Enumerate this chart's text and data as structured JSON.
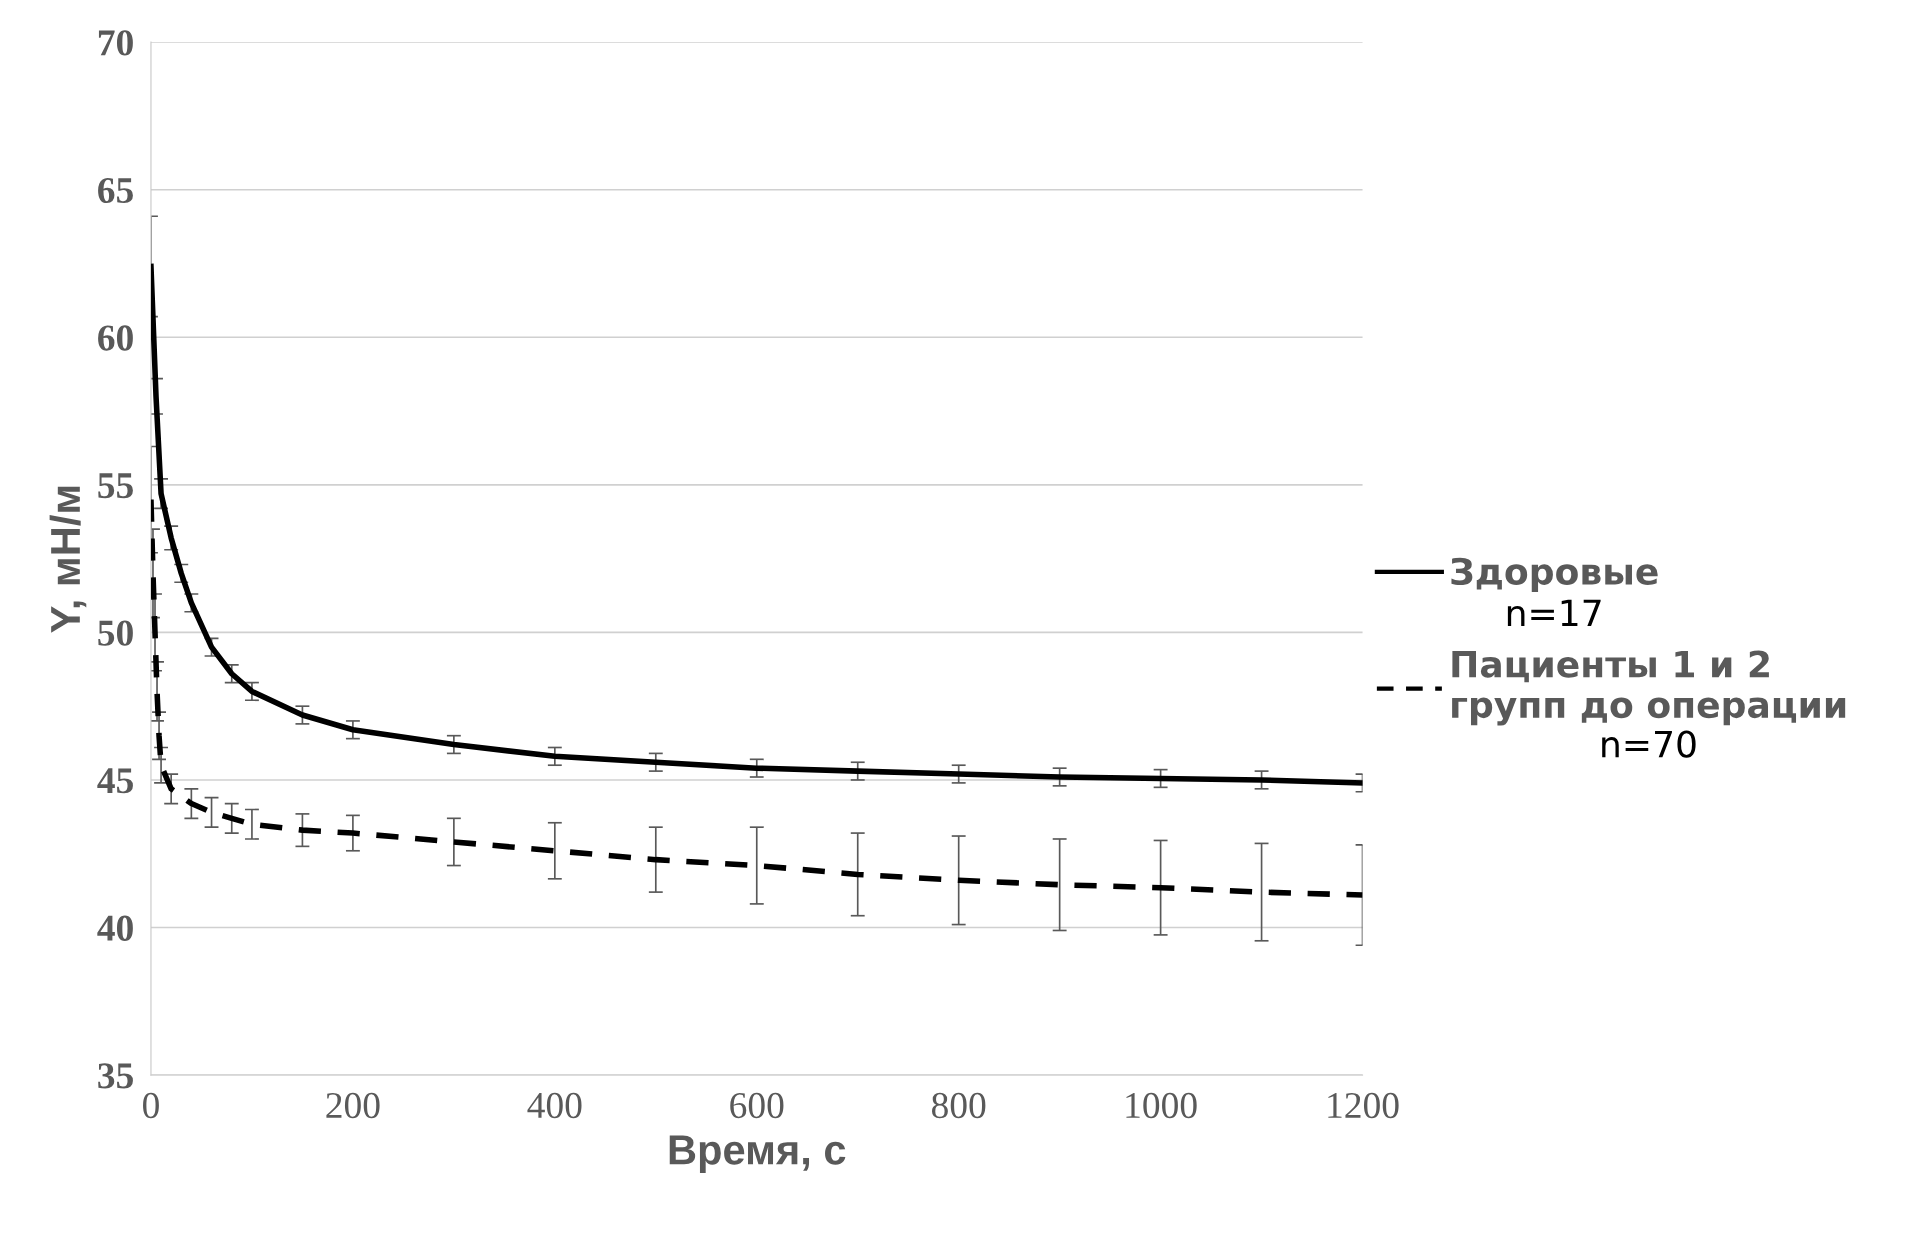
{
  "chart_data": {
    "type": "line",
    "xlabel": "Время, с",
    "ylabel": "Y, мН/м",
    "xlim": [
      0,
      1200
    ],
    "xticks": [
      0,
      200,
      400,
      600,
      800,
      1000,
      1200
    ],
    "ylim": [
      35,
      70
    ],
    "yticks": [
      35,
      40,
      45,
      50,
      55,
      60,
      65,
      70
    ],
    "grid": "y",
    "legend": "right",
    "marker": "none",
    "series": [
      {
        "name": "Здоровые",
        "color": "#000000",
        "line_style": "solid",
        "x": [
          0,
          5,
          10,
          20,
          30,
          40,
          60,
          80,
          100,
          150,
          200,
          300,
          400,
          500,
          600,
          700,
          800,
          900,
          1000,
          1100,
          1200
        ],
        "values": [
          62.4,
          58,
          54.7,
          53.2,
          52,
          51,
          49.5,
          48.6,
          48,
          47.2,
          46.7,
          46.2,
          45.8,
          45.6,
          45.4,
          45.3,
          45.2,
          45.1,
          45.05,
          45.0,
          44.9
        ],
        "errors": [
          1.7,
          0.6,
          0.5,
          0.4,
          0.3,
          0.3,
          0.3,
          0.3,
          0.3,
          0.3,
          0.3,
          0.3,
          0.3,
          0.3,
          0.3,
          0.3,
          0.3,
          0.3,
          0.3,
          0.3,
          0.3
        ]
      },
      {
        "name": "Пациенты 1 и 2 групп до операции",
        "color": "#000000",
        "line_style": "dashed",
        "x": [
          0,
          2,
          4,
          6,
          8,
          10,
          20,
          40,
          60,
          80,
          100,
          150,
          200,
          300,
          400,
          500,
          600,
          700,
          800,
          900,
          1000,
          1100,
          1200
        ],
        "values": [
          54.5,
          52,
          50,
          48,
          46.5,
          45.5,
          44.7,
          44.2,
          43.9,
          43.7,
          43.5,
          43.3,
          43.2,
          42.9,
          42.6,
          42.3,
          42.1,
          41.8,
          41.6,
          41.45,
          41.35,
          41.2,
          41.1
        ],
        "errors": [
          1.8,
          1.5,
          1.3,
          1.0,
          0.8,
          0.6,
          0.5,
          0.5,
          0.5,
          0.5,
          0.5,
          0.55,
          0.6,
          0.8,
          0.95,
          1.1,
          1.3,
          1.4,
          1.5,
          1.55,
          1.6,
          1.65,
          1.7
        ]
      }
    ],
    "annotations": [
      "n=17",
      "n=70"
    ]
  }
}
